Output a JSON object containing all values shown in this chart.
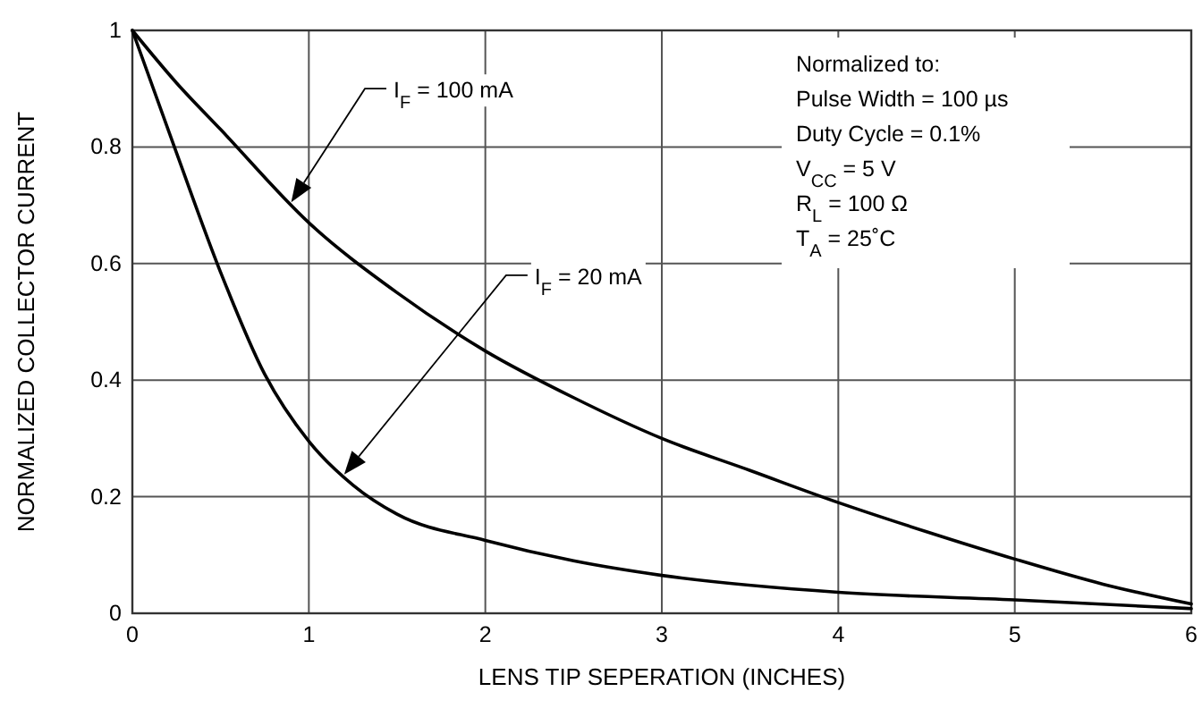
{
  "chart_data": {
    "type": "line",
    "xlabel": "LENS TIP SEPERATION (INCHES)",
    "ylabel": "NORMALIZED COLLECTOR CURRENT",
    "xlim": [
      0,
      6
    ],
    "ylim": [
      0,
      1
    ],
    "xticks": [
      0,
      1,
      2,
      3,
      4,
      5,
      6
    ],
    "yticks": [
      0,
      0.2,
      0.4,
      0.6,
      0.8,
      1
    ],
    "grid": true,
    "marker": "none",
    "line_style": "solid",
    "series": [
      {
        "color": "#000000",
        "x": [
          0,
          0.25,
          0.5,
          1,
          1.5,
          2,
          2.5,
          3,
          3.5,
          4,
          4.5,
          5,
          5.5,
          6
        ],
        "values": [
          1,
          0.91,
          0.83,
          0.67,
          0.55,
          0.45,
          0.37,
          0.3,
          0.245,
          0.19,
          0.14,
          0.093,
          0.05,
          0.016
        ]
      },
      {
        "color": "#000000",
        "x": [
          0,
          0.25,
          0.5,
          0.75,
          1,
          1.25,
          1.5,
          2,
          2.5,
          3,
          4,
          5,
          6
        ],
        "values": [
          1,
          0.79,
          0.585,
          0.41,
          0.295,
          0.22,
          0.17,
          0.125,
          0.09,
          0.065,
          0.036,
          0.023,
          0.008
        ]
      }
    ],
    "annotations": [
      "I$_{F}$ = 100 mA",
      "I$_{F}$ = 20 mA",
      "Normalized to:\nPulse Width = 100 µs\nDuty Cycle = 0.1%\nV$_{CC}$ = 5 V\nR$_{L}$ = 100 Ω\nT$_{A}$ = 25˚C"
    ]
  }
}
